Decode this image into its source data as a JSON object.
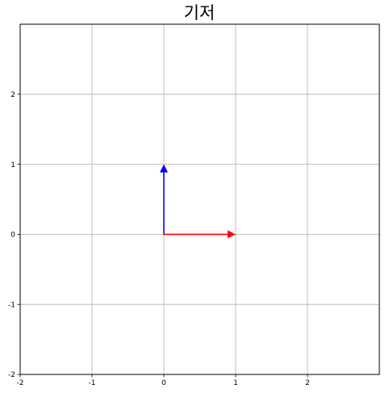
{
  "chart_data": {
    "type": "quiver",
    "title": "기저",
    "xlabel": "",
    "ylabel": "",
    "xlim": [
      -2,
      3
    ],
    "ylim": [
      -2,
      3
    ],
    "x_ticks": [
      -2,
      -1,
      0,
      1,
      2
    ],
    "y_ticks": [
      -2,
      -1,
      0,
      1,
      2
    ],
    "grid": true,
    "vectors": [
      {
        "x0": 0,
        "y0": 0,
        "dx": 1,
        "dy": 0,
        "color": "#ff0000"
      },
      {
        "x0": 0,
        "y0": 0,
        "dx": 0,
        "dy": 1,
        "color": "#0000ff"
      }
    ]
  }
}
